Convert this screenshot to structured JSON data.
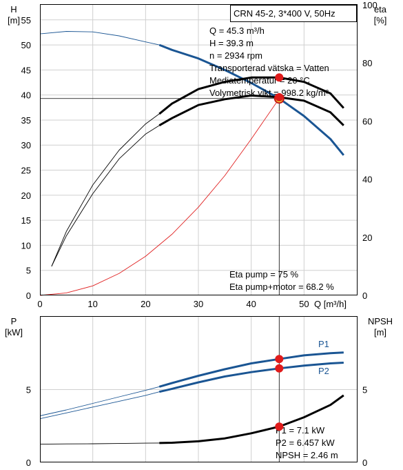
{
  "colors": {
    "grid": "#cfcfcf",
    "head_curve": "#1a5593",
    "power_curve": "#1a5593",
    "efficiency_curve": "#000000",
    "npsh_curve": "#000000",
    "system_curve": "#e02020",
    "marker_fill": "#e01b1b",
    "duty_marker_fill": "#f4ea3a"
  },
  "header": {
    "pump_label": "CRN 45-2, 3*400 V, 50Hz"
  },
  "duty_info": [
    "Q = 45.3 m³/h",
    "H = 39.3 m",
    "n = 2934 rpm",
    "Transporterad vätska = Vatten",
    "Mediatemperatur = 20 °C",
    "Volymetrisk vikt = 998.2 kg/m³"
  ],
  "eta_info": [
    "Eta pump = 75 %",
    "Eta pump+motor = 68.2 %"
  ],
  "power_info": [
    "P1 = 7.1 kW",
    "P2 = 6.457 kW",
    "NPSH = 2.46 m"
  ],
  "chart_data": [
    {
      "type": "line",
      "x_label": "Q [m³/h]",
      "x_range": [
        0,
        60
      ],
      "x_ticks": [
        0,
        10,
        20,
        30,
        40,
        50
      ],
      "y_left_label": [
        "H",
        "[m]"
      ],
      "y_left_range": [
        0,
        58
      ],
      "y_left_ticks": [
        0,
        5,
        10,
        15,
        20,
        25,
        30,
        35,
        40,
        45,
        50,
        55
      ],
      "y_right_label": [
        "eta",
        "[%]"
      ],
      "y_right_range": [
        0,
        100
      ],
      "y_right_ticks": [
        0,
        20,
        40,
        60,
        80,
        100
      ],
      "operating_range": [
        22.6,
        57.5
      ],
      "duty_point": {
        "x": 45.3,
        "y": 39.3
      },
      "series": [
        {
          "key": "H",
          "axis": "left",
          "x": [
            0,
            5,
            10,
            15,
            20,
            22.6,
            25,
            30,
            35,
            40,
            45.3,
            50,
            55,
            57.5
          ],
          "y": [
            52.2,
            52.7,
            52.6,
            51.8,
            50.6,
            50.0,
            49.0,
            47.3,
            45.0,
            42.4,
            39.3,
            35.8,
            31.2,
            28.0
          ]
        },
        {
          "key": "eta_pump",
          "axis": "right",
          "x": [
            2.2,
            5,
            10,
            15,
            20,
            22.6,
            25,
            30,
            35,
            40,
            45.3,
            50,
            55,
            57.5
          ],
          "y": [
            10,
            22,
            38,
            50,
            59,
            62.5,
            66,
            71,
            73.5,
            75,
            75,
            73.5,
            69.5,
            64.5
          ]
        },
        {
          "key": "eta_pump_motor",
          "axis": "right",
          "x": [
            2.2,
            5,
            10,
            15,
            20,
            22.6,
            25,
            30,
            35,
            40,
            45.3,
            50,
            55,
            57.5
          ],
          "y": [
            10,
            20.5,
            35,
            47,
            55.5,
            58.5,
            61,
            65.5,
            67.5,
            68.8,
            68.2,
            67,
            63,
            58.5
          ]
        },
        {
          "key": "system_curve",
          "axis": "left",
          "x": [
            0,
            5,
            10,
            15,
            20,
            25,
            30,
            35,
            40,
            45.3
          ],
          "y": [
            0,
            0.5,
            1.9,
            4.4,
            7.8,
            12.2,
            17.6,
            23.9,
            31.2,
            39.3
          ]
        }
      ],
      "markers": [
        {
          "x": 45.3,
          "y": 75,
          "axis": "right"
        },
        {
          "x": 45.3,
          "y": 68.2,
          "axis": "right"
        }
      ]
    },
    {
      "type": "line",
      "x_range": [
        0,
        60
      ],
      "y_left_label": [
        "P",
        "[kW]"
      ],
      "y_left_range": [
        0,
        10
      ],
      "y_left_ticks": [
        0,
        5
      ],
      "y_right_label": [
        "NPSH",
        "[m]"
      ],
      "y_right_range": [
        0,
        10
      ],
      "y_right_ticks": [
        0,
        5
      ],
      "operating_range": [
        22.6,
        57.5
      ],
      "series": [
        {
          "key": "P1",
          "name": "P1",
          "axis": "left",
          "x": [
            0,
            5,
            10,
            15,
            20,
            22.6,
            25,
            30,
            35,
            40,
            45.3,
            50,
            55,
            57.5
          ],
          "y": [
            3.2,
            3.6,
            4.05,
            4.5,
            4.95,
            5.2,
            5.45,
            5.95,
            6.4,
            6.8,
            7.1,
            7.35,
            7.5,
            7.55
          ]
        },
        {
          "key": "P2",
          "name": "P2",
          "axis": "left",
          "x": [
            0,
            5,
            10,
            15,
            20,
            22.6,
            25,
            30,
            35,
            40,
            45.3,
            50,
            55,
            57.5
          ],
          "y": [
            3.0,
            3.4,
            3.8,
            4.2,
            4.6,
            4.85,
            5.05,
            5.5,
            5.9,
            6.2,
            6.457,
            6.65,
            6.8,
            6.85
          ]
        },
        {
          "key": "NPSH",
          "axis": "right",
          "x": [
            0,
            5,
            10,
            15,
            20,
            22.6,
            25,
            30,
            35,
            40,
            45.3,
            50,
            55,
            57.5
          ],
          "y": [
            1.25,
            1.27,
            1.28,
            1.3,
            1.32,
            1.33,
            1.35,
            1.45,
            1.65,
            2.0,
            2.46,
            3.1,
            3.95,
            4.6
          ]
        }
      ],
      "markers": [
        {
          "x": 45.3,
          "y": 7.1,
          "axis": "left"
        },
        {
          "x": 45.3,
          "y": 6.457,
          "axis": "left"
        },
        {
          "x": 45.3,
          "y": 2.46,
          "axis": "right"
        }
      ]
    }
  ]
}
